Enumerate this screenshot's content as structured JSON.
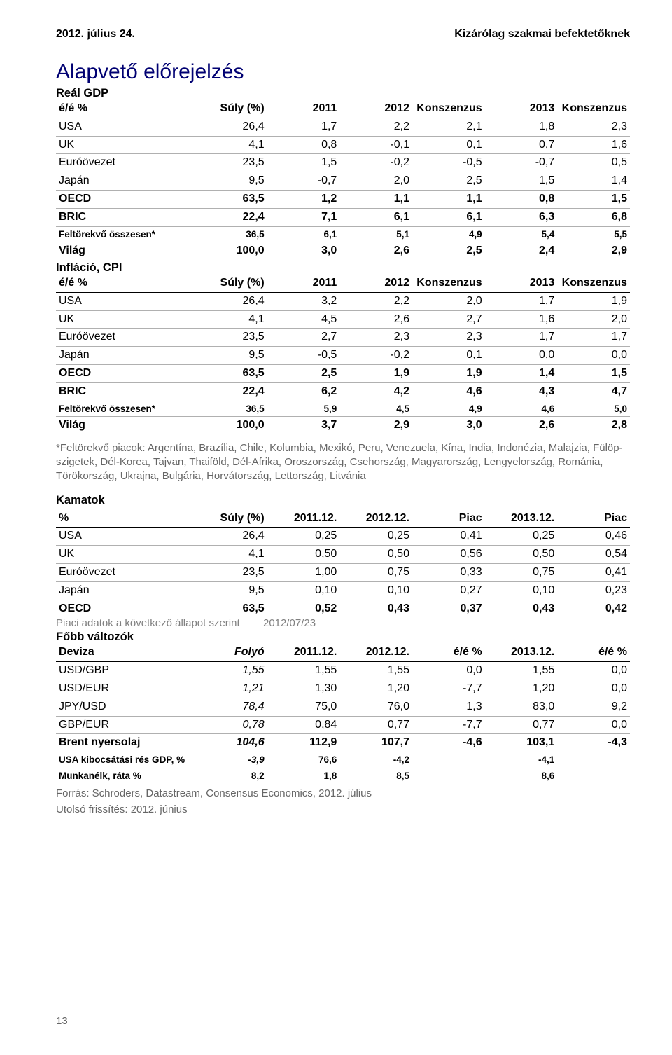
{
  "header": {
    "date": "2012. július 24.",
    "audience": "Kizárólag szakmai befektetőknek"
  },
  "title": "Alapvető előrejelzés",
  "gdp": {
    "subtitle": "Reál GDP",
    "columns": [
      "é/é %",
      "Súly (%)",
      "2011",
      "2012",
      "Konszenzus",
      "2013",
      "Konszenzus"
    ],
    "rows": [
      {
        "label": "USA",
        "v": [
          "26,4",
          "1,7",
          "2,2",
          "2,1",
          "1,8",
          "2,3"
        ],
        "bold": false,
        "border": true
      },
      {
        "label": "UK",
        "v": [
          "4,1",
          "0,8",
          "-0,1",
          "0,1",
          "0,7",
          "1,6"
        ],
        "bold": false,
        "border": true
      },
      {
        "label": "Euróövezet",
        "v": [
          "23,5",
          "1,5",
          "-0,2",
          "-0,5",
          "-0,7",
          "0,5"
        ],
        "bold": false,
        "border": true
      },
      {
        "label": "Japán",
        "v": [
          "9,5",
          "-0,7",
          "2,0",
          "2,5",
          "1,5",
          "1,4"
        ],
        "bold": false,
        "border": true
      },
      {
        "label": "OECD",
        "v": [
          "63,5",
          "1,2",
          "1,1",
          "1,1",
          "0,8",
          "1,5"
        ],
        "bold": true,
        "border": true
      },
      {
        "label": "BRIC",
        "v": [
          "22,4",
          "7,1",
          "6,1",
          "6,1",
          "6,3",
          "6,8"
        ],
        "bold": true,
        "border": true
      },
      {
        "label": "Feltörekvő összesen*",
        "v": [
          "36,5",
          "6,1",
          "5,1",
          "4,9",
          "5,4",
          "5,5"
        ],
        "bold": true,
        "border": true,
        "small": true
      },
      {
        "label": "Világ",
        "v": [
          "100,0",
          "3,0",
          "2,6",
          "2,5",
          "2,4",
          "2,9"
        ],
        "bold": true,
        "border": false
      }
    ]
  },
  "cpi": {
    "subtitle": "Infláció, CPI",
    "columns": [
      "é/é %",
      "Súly (%)",
      "2011",
      "2012",
      "Konszenzus",
      "2013",
      "Konszenzus"
    ],
    "rows": [
      {
        "label": "USA",
        "v": [
          "26,4",
          "3,2",
          "2,2",
          "2,0",
          "1,7",
          "1,9"
        ],
        "bold": false,
        "border": true
      },
      {
        "label": "UK",
        "v": [
          "4,1",
          "4,5",
          "2,6",
          "2,7",
          "1,6",
          "2,0"
        ],
        "bold": false,
        "border": true
      },
      {
        "label": "Euróövezet",
        "v": [
          "23,5",
          "2,7",
          "2,3",
          "2,3",
          "1,7",
          "1,7"
        ],
        "bold": false,
        "border": true
      },
      {
        "label": "Japán",
        "v": [
          "9,5",
          "-0,5",
          "-0,2",
          "0,1",
          "0,0",
          "0,0"
        ],
        "bold": false,
        "border": true
      },
      {
        "label": "OECD",
        "v": [
          "63,5",
          "2,5",
          "1,9",
          "1,9",
          "1,4",
          "1,5"
        ],
        "bold": true,
        "border": true
      },
      {
        "label": "BRIC",
        "v": [
          "22,4",
          "6,2",
          "4,2",
          "4,6",
          "4,3",
          "4,7"
        ],
        "bold": true,
        "border": true
      },
      {
        "label": "Feltörekvő összesen*",
        "v": [
          "36,5",
          "5,9",
          "4,5",
          "4,9",
          "4,6",
          "5,0"
        ],
        "bold": true,
        "border": true,
        "small": true
      },
      {
        "label": "Világ",
        "v": [
          "100,0",
          "3,7",
          "2,9",
          "3,0",
          "2,6",
          "2,8"
        ],
        "bold": true,
        "border": false
      }
    ]
  },
  "note": "*Feltörekvő piacok: Argentína, Brazília, Chile, Kolumbia, Mexikó, Peru, Venezuela, Kína, India, Indonézia, Malajzia, Fülöp-szigetek, Dél-Korea, Tajvan, Thaiföld, Dél-Afrika, Oroszország, Csehország, Magyarország, Lengyelország, Románia, Törökország, Ukrajna, Bulgária, Horvátország, Lettország, Litvánia",
  "rates": {
    "title": "Kamatok",
    "columns": [
      "%",
      "Súly (%)",
      "2011.12.",
      "2012.12.",
      "Piac",
      "2013.12.",
      "Piac"
    ],
    "rows": [
      {
        "label": "USA",
        "v": [
          "26,4",
          "0,25",
          "0,25",
          "0,41",
          "0,25",
          "0,46"
        ],
        "bold": false,
        "border": true
      },
      {
        "label": "UK",
        "v": [
          "4,1",
          "0,50",
          "0,50",
          "0,56",
          "0,50",
          "0,54"
        ],
        "bold": false,
        "border": true
      },
      {
        "label": "Euróövezet",
        "v": [
          "23,5",
          "1,00",
          "0,75",
          "0,33",
          "0,75",
          "0,41"
        ],
        "bold": false,
        "border": true
      },
      {
        "label": "Japán",
        "v": [
          "9,5",
          "0,10",
          "0,10",
          "0,27",
          "0,10",
          "0,23"
        ],
        "bold": false,
        "border": true
      },
      {
        "label": "OECD",
        "v": [
          "63,5",
          "0,52",
          "0,43",
          "0,37",
          "0,43",
          "0,42"
        ],
        "bold": true,
        "border": false
      }
    ],
    "market_note_left": "Piaci adatok a következő állapot szerint",
    "market_note_right": "2012/07/23"
  },
  "vars": {
    "title": "Főbb változók",
    "columns": [
      "Deviza",
      "Folyó",
      "2011.12.",
      "2012.12.",
      "é/é %",
      "2013.12.",
      "é/é %"
    ],
    "rows": [
      {
        "label": "USD/GBP",
        "v": [
          "1,55",
          "1,55",
          "1,55",
          "0,0",
          "1,55",
          "0,0"
        ],
        "bold": false,
        "border": true,
        "italic_first": true
      },
      {
        "label": "USD/EUR",
        "v": [
          "1,21",
          "1,30",
          "1,20",
          "-7,7",
          "1,20",
          "0,0"
        ],
        "bold": false,
        "border": true,
        "italic_first": true
      },
      {
        "label": "JPY/USD",
        "v": [
          "78,4",
          "75,0",
          "76,0",
          "1,3",
          "83,0",
          "9,2"
        ],
        "bold": false,
        "border": true,
        "italic_first": true
      },
      {
        "label": "GBP/EUR",
        "v": [
          "0,78",
          "0,84",
          "0,77",
          "-7,7",
          "0,77",
          "0,0"
        ],
        "bold": false,
        "border": true,
        "italic_first": true
      },
      {
        "label": "Brent nyersolaj",
        "v": [
          "104,6",
          "112,9",
          "107,7",
          "-4,6",
          "103,1",
          "-4,3"
        ],
        "bold": true,
        "border": true,
        "italic_first": true
      },
      {
        "label": "USA kibocsátási rés GDP, %",
        "v": [
          "-3,9",
          "76,6",
          "-4,2",
          "",
          "-4,1",
          ""
        ],
        "bold": true,
        "border": true,
        "italic_first": true,
        "small": true
      },
      {
        "label": "Munkanélk, ráta %",
        "v": [
          "8,2",
          "1,8",
          "8,5",
          "",
          "8,6",
          ""
        ],
        "bold": true,
        "border": false,
        "small": true
      }
    ]
  },
  "source": "Forrás: Schroders, Datastream, Consensus Economics, 2012. július",
  "updated": "Utolsó frissítés: 2012. június",
  "page_number": "13"
}
